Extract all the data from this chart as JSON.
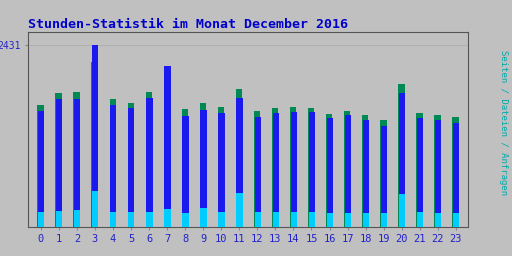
{
  "title": "Stunden-Statistik im Monat December 2016",
  "ylabel": "Seiten / Dateien / Anfragen",
  "ytick_label": "2431",
  "hours": [
    0,
    1,
    2,
    3,
    4,
    5,
    6,
    7,
    8,
    9,
    10,
    11,
    12,
    13,
    14,
    15,
    16,
    17,
    18,
    19,
    20,
    21,
    22,
    23
  ],
  "blue_bars": [
    1550,
    1700,
    1700,
    2431,
    1620,
    1580,
    1720,
    2150,
    1480,
    1560,
    1520,
    1720,
    1470,
    1520,
    1530,
    1530,
    1450,
    1490,
    1420,
    1350,
    1780,
    1450,
    1420,
    1390
  ],
  "green_bars": [
    1620,
    1780,
    1800,
    2200,
    1700,
    1650,
    1800,
    2020,
    1570,
    1650,
    1600,
    1840,
    1540,
    1590,
    1600,
    1590,
    1510,
    1550,
    1490,
    1420,
    1900,
    1520,
    1490,
    1460
  ],
  "cyan_bars": [
    200,
    210,
    220,
    480,
    195,
    190,
    195,
    230,
    185,
    250,
    200,
    450,
    195,
    200,
    200,
    195,
    180,
    185,
    175,
    175,
    430,
    190,
    185,
    180
  ],
  "bg_color": "#c0c0c0",
  "plot_bg": "#c0c0c0",
  "bar_color_blue": "#1a1aee",
  "bar_color_green": "#008855",
  "bar_color_cyan": "#00ccff",
  "title_color": "#0000cc",
  "ylabel_color": "#00aaaa",
  "tick_color": "#2222cc",
  "ylim_max": 2600,
  "bar_width": 0.35
}
